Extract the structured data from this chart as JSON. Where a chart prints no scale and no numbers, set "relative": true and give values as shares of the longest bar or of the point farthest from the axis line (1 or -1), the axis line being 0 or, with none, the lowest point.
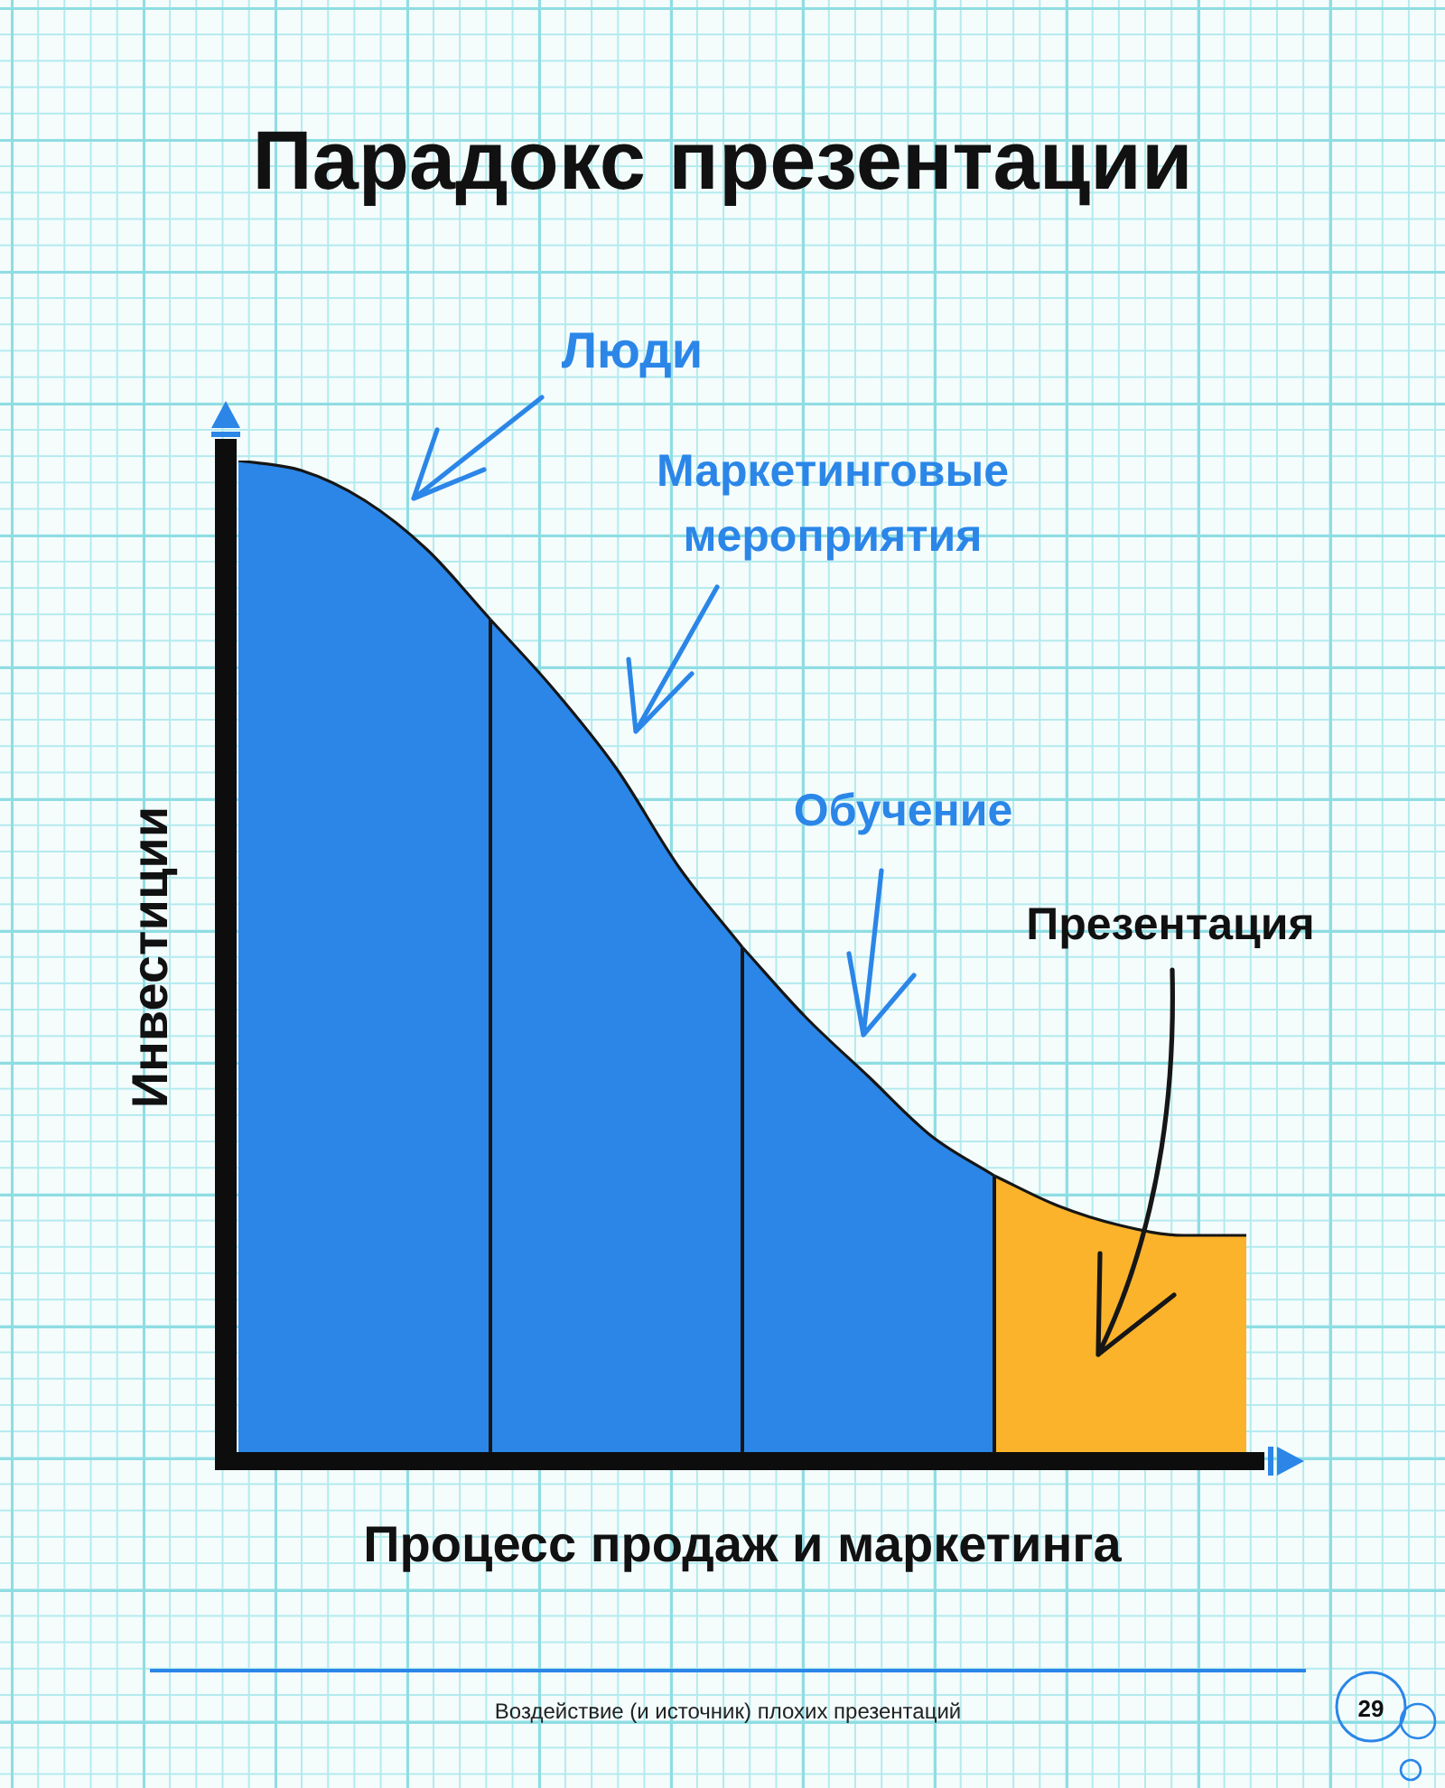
{
  "chart_data": {
    "type": "area",
    "title": "Парадокс презентации",
    "xlabel": "Процесс продаж и маркетинга",
    "ylabel": "Инвестиции",
    "relative": true,
    "tick_labels": false,
    "categories": [
      null,
      null,
      null,
      null,
      null,
      null,
      null,
      null,
      null,
      null,
      null,
      null,
      null,
      null,
      null,
      null,
      null
    ],
    "series": [
      {
        "color": "#2b86e8",
        "values": [
          1,
          0.99,
          0.96,
          0.91,
          0.84,
          null,
          null,
          null,
          null,
          null,
          null,
          null,
          null,
          null,
          null,
          null,
          null
        ]
      },
      {
        "color": "#2b86e8",
        "values": [
          null,
          null,
          null,
          null,
          0.84,
          0.77,
          0.69,
          0.59,
          0.51,
          null,
          null,
          null,
          null,
          null,
          null,
          null,
          null
        ]
      },
      {
        "color": "#2b86e8",
        "values": [
          null,
          null,
          null,
          null,
          null,
          null,
          null,
          null,
          0.51,
          0.44,
          0.38,
          0.32,
          0.28,
          null,
          null,
          null,
          null
        ]
      },
      {
        "color": "#fbb32b",
        "values": [
          null,
          null,
          null,
          null,
          null,
          null,
          null,
          null,
          null,
          null,
          null,
          null,
          0.28,
          0.25,
          0.23,
          0.22,
          0.22
        ]
      }
    ],
    "annotations": [
      "Люди",
      "Маркетинговые мероприятия",
      "Обучение",
      "Презентация",
      "Воздействие (и источник) плохих презентаций",
      "29"
    ]
  }
}
